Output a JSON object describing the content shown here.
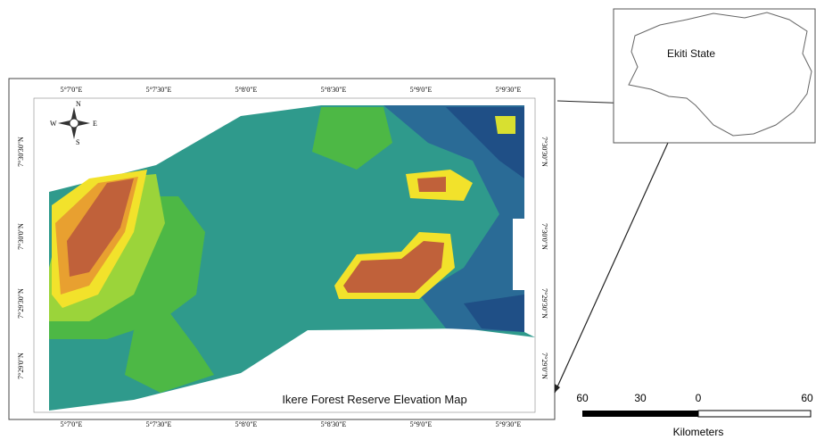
{
  "map": {
    "title": "Ikere Forest Reserve Elevation Map",
    "top_labels": [
      "5°7'0\"E",
      "5°7'30\"E",
      "5°8'0\"E",
      "5°8'30\"E",
      "5°9'0\"E",
      "5°9'30\"E"
    ],
    "bottom_labels": [
      "5°7'0\"E",
      "5°7'30\"E",
      "5°8'0\"E",
      "5°8'30\"E",
      "5°9'0\"E",
      "5°9'30\"E"
    ],
    "left_labels": [
      "7°30'30\"N",
      "7°30'0\"N",
      "7°29'30\"N",
      "7°29'0\"N"
    ],
    "right_labels": [
      "7°30'30\"N",
      "7°30'0\"N",
      "7°29'30\"N",
      "7°29'0\"N"
    ],
    "compass": {
      "north": "N",
      "south": "S",
      "east": "E",
      "west": "W"
    }
  },
  "inset": {
    "label": "Ekiti State"
  },
  "scale_bar": {
    "labels": [
      "60",
      "30",
      "0",
      "60"
    ],
    "unit": "Kilometers"
  }
}
